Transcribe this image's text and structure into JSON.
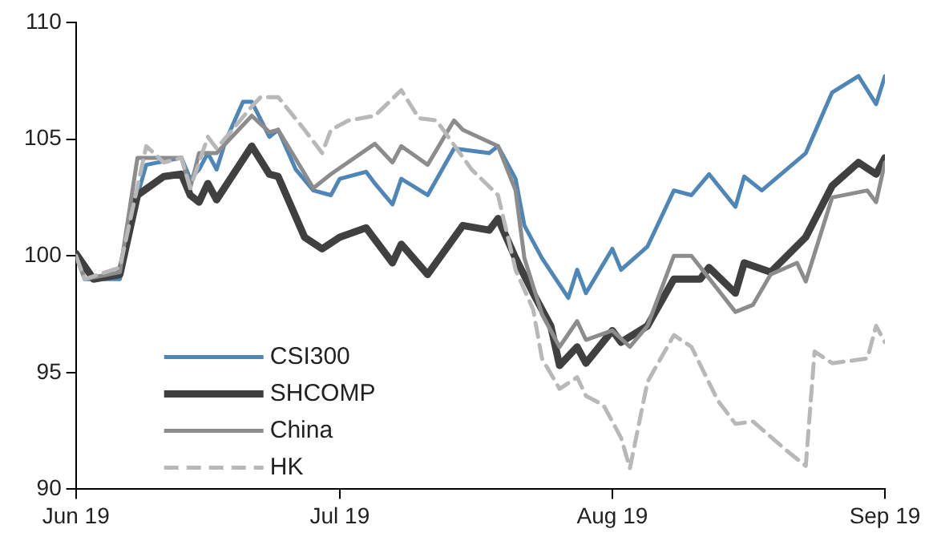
{
  "chart_data": {
    "type": "line",
    "xlim": [
      "2019-06-01",
      "2019-09-01"
    ],
    "xticks": [
      {
        "value": "2019-06-01",
        "label": "Jun 19"
      },
      {
        "value": "2019-07-01",
        "label": "Jul 19"
      },
      {
        "value": "2019-08-01",
        "label": "Aug 19"
      },
      {
        "value": "2019-09-01",
        "label": "Sep 19"
      }
    ],
    "ylim": [
      90,
      110
    ],
    "yticks": [
      90,
      95,
      100,
      105,
      110
    ],
    "grid": false,
    "legend": "bottom left",
    "marker": "none",
    "series": [
      {
        "name": "CSI300",
        "color": "#4f86b8",
        "line_style": "solid",
        "x": [
          "2019-06-01",
          "2019-06-02",
          "2019-06-06",
          "2019-06-07",
          "2019-06-09",
          "2019-06-13",
          "2019-06-14",
          "2019-06-15",
          "2019-06-16",
          "2019-06-17",
          "2019-06-18",
          "2019-06-20",
          "2019-06-21",
          "2019-06-23",
          "2019-06-24",
          "2019-06-26",
          "2019-06-28",
          "2019-06-30",
          "2019-07-01",
          "2019-07-04",
          "2019-07-05",
          "2019-07-07",
          "2019-07-08",
          "2019-07-11",
          "2019-07-14",
          "2019-07-18",
          "2019-07-19",
          "2019-07-21",
          "2019-07-22",
          "2019-07-24",
          "2019-07-27",
          "2019-07-28",
          "2019-07-29",
          "2019-08-01",
          "2019-08-02",
          "2019-08-05",
          "2019-08-08",
          "2019-08-10",
          "2019-08-12",
          "2019-08-15",
          "2019-08-16",
          "2019-08-18",
          "2019-08-23",
          "2019-08-26",
          "2019-08-29",
          "2019-08-31",
          "2019-09-01"
        ],
        "values": [
          100.1,
          99,
          99,
          101.3,
          103.9,
          104.2,
          103.3,
          103.7,
          104.4,
          103.7,
          104.9,
          106.6,
          106.6,
          105.1,
          105.4,
          103.7,
          102.8,
          102.6,
          103.3,
          103.6,
          103.1,
          102.2,
          103.3,
          102.6,
          104.6,
          104.4,
          104.7,
          103.3,
          101.3,
          99.9,
          98.2,
          99.4,
          98.4,
          100.3,
          99.4,
          100.4,
          102.8,
          102.6,
          103.5,
          102.1,
          103.4,
          102.8,
          104.4,
          107,
          107.7,
          106.5,
          107.7
        ]
      },
      {
        "name": "SHCOMP",
        "color": "#404040",
        "line_style": "solid",
        "x": [
          "2019-06-01",
          "2019-06-03",
          "2019-06-06",
          "2019-06-08",
          "2019-06-11",
          "2019-06-13",
          "2019-06-14",
          "2019-06-15",
          "2019-06-16",
          "2019-06-17",
          "2019-06-21",
          "2019-06-23",
          "2019-06-24",
          "2019-06-27",
          "2019-06-29",
          "2019-07-01",
          "2019-07-04",
          "2019-07-07",
          "2019-07-08",
          "2019-07-11",
          "2019-07-15",
          "2019-07-18",
          "2019-07-19",
          "2019-07-21",
          "2019-07-23",
          "2019-07-25",
          "2019-07-26",
          "2019-07-28",
          "2019-07-29",
          "2019-08-01",
          "2019-08-02",
          "2019-08-05",
          "2019-08-08",
          "2019-08-11",
          "2019-08-12",
          "2019-08-15",
          "2019-08-16",
          "2019-08-19",
          "2019-08-23",
          "2019-08-26",
          "2019-08-29",
          "2019-08-31",
          "2019-09-01"
        ],
        "values": [
          100.1,
          99,
          99.2,
          102.6,
          103.4,
          103.5,
          102.6,
          102.3,
          103.1,
          102.4,
          104.7,
          103.5,
          103.4,
          100.8,
          100.3,
          100.8,
          101.2,
          99.7,
          100.5,
          99.2,
          101.3,
          101.1,
          101.6,
          99.9,
          98.4,
          97,
          95.3,
          96.1,
          95.4,
          96.8,
          96.3,
          97,
          99,
          99,
          99.5,
          98.4,
          99.7,
          99.3,
          100.8,
          103,
          104,
          103.5,
          104.2
        ]
      },
      {
        "name": "China",
        "color": "#8c8c8c",
        "line_style": "solid",
        "x": [
          "2019-06-01",
          "2019-06-02",
          "2019-06-06",
          "2019-06-08",
          "2019-06-13",
          "2019-06-14",
          "2019-06-15",
          "2019-06-17",
          "2019-06-21",
          "2019-06-23",
          "2019-06-24",
          "2019-06-28",
          "2019-06-30",
          "2019-07-05",
          "2019-07-07",
          "2019-07-08",
          "2019-07-11",
          "2019-07-14",
          "2019-07-15",
          "2019-07-19",
          "2019-07-21",
          "2019-07-22",
          "2019-07-24",
          "2019-07-26",
          "2019-07-28",
          "2019-07-29",
          "2019-08-01",
          "2019-08-03",
          "2019-08-05",
          "2019-08-08",
          "2019-08-10",
          "2019-08-15",
          "2019-08-17",
          "2019-08-19",
          "2019-08-22",
          "2019-08-23",
          "2019-08-26",
          "2019-08-30",
          "2019-08-31",
          "2019-09-01"
        ],
        "values": [
          100,
          99,
          99.3,
          104.2,
          104.2,
          102.9,
          104.4,
          104.4,
          106,
          105.3,
          105.4,
          102.9,
          103.5,
          104.8,
          104,
          104.7,
          103.9,
          105.8,
          105.4,
          104.7,
          102.8,
          99.9,
          97.5,
          96.1,
          97.2,
          96.4,
          96.8,
          96.1,
          97,
          100,
          100,
          97.6,
          97.9,
          99.2,
          99.7,
          98.9,
          102.5,
          102.8,
          102.3,
          104
        ]
      },
      {
        "name": "HK",
        "color": "#b8b8b8",
        "line_style": "dashed",
        "x": [
          "2019-06-01",
          "2019-06-02",
          "2019-06-06",
          "2019-06-09",
          "2019-06-11",
          "2019-06-13",
          "2019-06-14",
          "2019-06-16",
          "2019-06-17",
          "2019-06-21",
          "2019-06-22",
          "2019-06-24",
          "2019-06-27",
          "2019-06-29",
          "2019-06-30",
          "2019-07-02",
          "2019-07-05",
          "2019-07-08",
          "2019-07-10",
          "2019-07-12",
          "2019-07-16",
          "2019-07-19",
          "2019-07-21",
          "2019-07-23",
          "2019-07-24",
          "2019-07-26",
          "2019-07-28",
          "2019-07-29",
          "2019-07-31",
          "2019-08-02",
          "2019-08-03",
          "2019-08-05",
          "2019-08-08",
          "2019-08-10",
          "2019-08-13",
          "2019-08-15",
          "2019-08-17",
          "2019-08-21",
          "2019-08-23",
          "2019-08-24",
          "2019-08-26",
          "2019-08-30",
          "2019-08-31",
          "2019-09-01"
        ],
        "values": [
          100,
          99,
          99.5,
          104.7,
          104,
          104.2,
          102.9,
          105.1,
          104.6,
          106.4,
          106.8,
          106.8,
          105.4,
          104.4,
          105.4,
          105.8,
          106,
          107.1,
          105.9,
          105.8,
          103.7,
          102.6,
          99.4,
          97.7,
          95.6,
          94.3,
          94.8,
          94,
          93.6,
          92.2,
          90.9,
          94.6,
          96.6,
          96.1,
          93.8,
          92.8,
          92.9,
          91.6,
          91,
          95.9,
          95.4,
          95.6,
          97,
          96.3
        ]
      }
    ]
  }
}
